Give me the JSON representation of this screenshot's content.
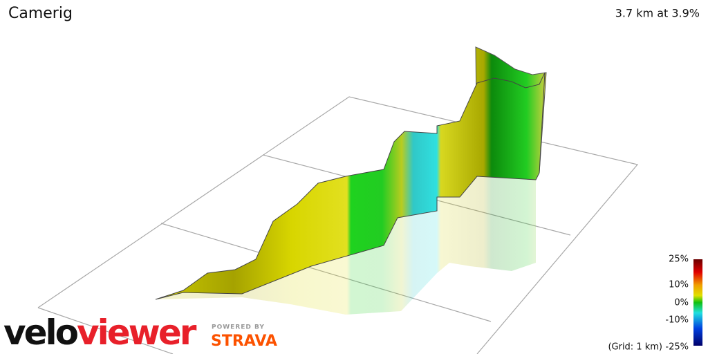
{
  "header": {
    "title": "Camerig",
    "summary": "3.7 km at 3.9%"
  },
  "legend": {
    "labels": [
      "25%",
      "10%",
      "0%",
      "-10%",
      "-25%"
    ],
    "grid_note": "(Grid: 1 km)"
  },
  "branding": {
    "logo_part1": "velo",
    "logo_part2": "viewer",
    "powered_by": "POWERED BY",
    "partner": "STRAVA"
  }
}
